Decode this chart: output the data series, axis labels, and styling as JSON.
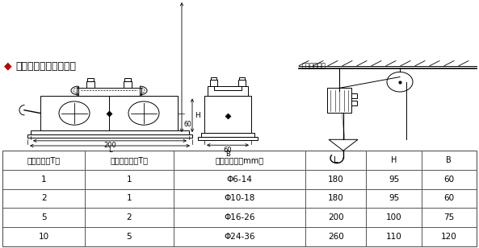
{
  "title": "外形结构和安装示意图",
  "title_diamond": "◆",
  "signal_label": "至仪表信号线",
  "dim_200": "200",
  "dim_L": "L",
  "dim_H": "H",
  "dim_60_h": "60",
  "dim_60_b": "60",
  "dim_B": "B",
  "table_headers": [
    "额定载荷（T）",
    "传感器容量（T）",
    "钢丝绳直径（mm）",
    "L",
    "H",
    "B"
  ],
  "table_data": [
    [
      "1",
      "1",
      "Φ6-14",
      "180",
      "95",
      "60"
    ],
    [
      "2",
      "1",
      "Φ10-18",
      "180",
      "95",
      "60"
    ],
    [
      "5",
      "2",
      "Φ16-26",
      "200",
      "100",
      "75"
    ],
    [
      "10",
      "5",
      "Φ24-36",
      "260",
      "110",
      "120"
    ]
  ],
  "bg_color": "#ffffff",
  "lc": "#000000",
  "font_size_title": 9,
  "font_size_table_header": 7,
  "font_size_table_data": 7.5,
  "font_size_label": 6
}
